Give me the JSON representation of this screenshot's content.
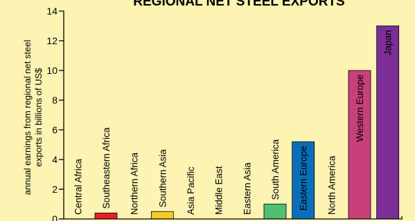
{
  "chart_data": {
    "type": "bar",
    "title": "REGIONAL NET STEEL EXPORTS",
    "ylabel_line1": "annual earnings from regional net steel",
    "ylabel_line2": "exports in billions of US$",
    "ylim": [
      0,
      14
    ],
    "yticks": [
      0,
      2,
      4,
      6,
      8,
      10,
      12,
      14
    ],
    "grid": false,
    "categories": [
      "Central Africa",
      "Southeastern Africa",
      "Northern Africa",
      "Southern Asia",
      "Asia Pacific",
      "Middle East",
      "Eastern Asia",
      "South America",
      "Eastern Europe",
      "North America",
      "Western Europe",
      "Japan"
    ],
    "values": [
      0,
      0.4,
      0,
      0.5,
      0,
      0,
      0,
      1.0,
      5.2,
      0,
      10.0,
      13.0
    ],
    "colors": [
      "#999999",
      "#e8202a",
      "#999999",
      "#f5c82e",
      "#999999",
      "#999999",
      "#999999",
      "#4fbf75",
      "#0a6fb8",
      "#999999",
      "#c8407a",
      "#7a2e96"
    ]
  }
}
